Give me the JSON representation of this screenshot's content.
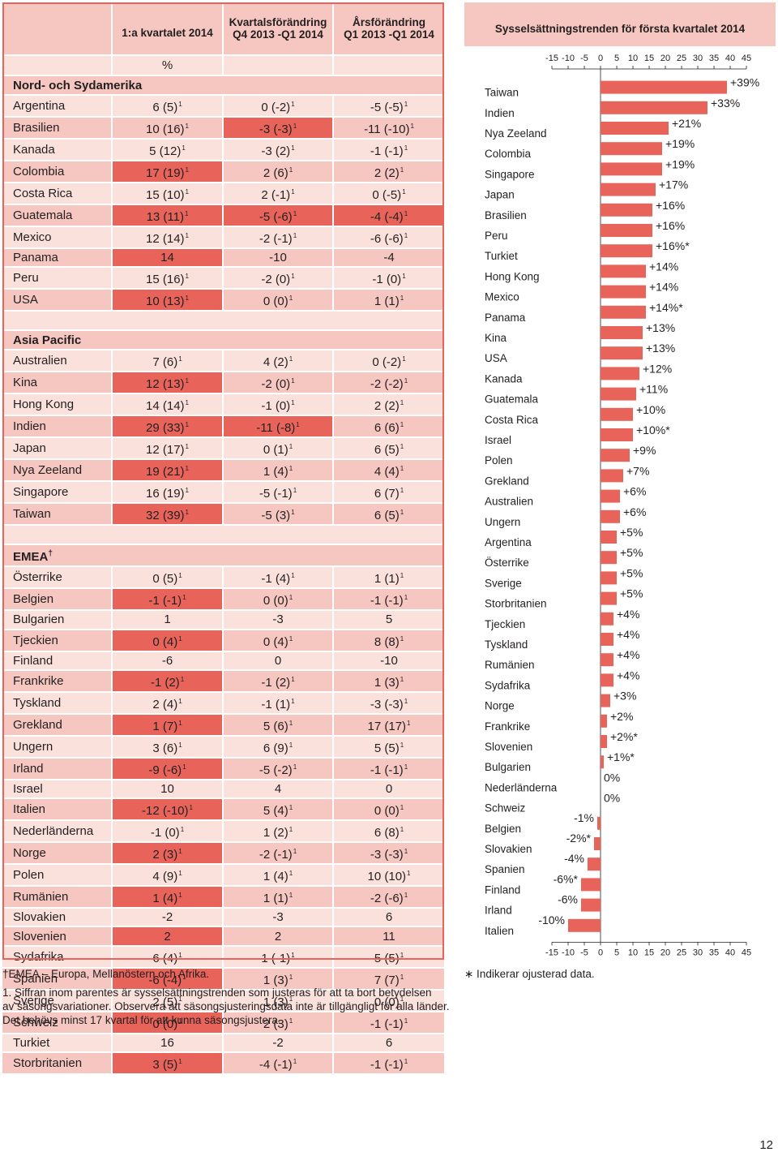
{
  "table": {
    "headers": [
      "1:a kvartalet 2014",
      "Kvartalsförändring",
      "Q4 2013 -Q1 2014",
      "Årsförändring",
      "Q1 2013 -Q1 2014"
    ],
    "unit": "%",
    "regions": [
      {
        "name": "Nord- och Sydamerika",
        "rows": [
          {
            "c": "Argentina",
            "a": "6 (5)",
            "as": "1",
            "b": "0 (-2)",
            "bs": "1",
            "d": "-5 (-5)",
            "ds": "1"
          },
          {
            "c": "Brasilien",
            "a": "10 (16)",
            "as": "1",
            "b": "-3 (-3)",
            "bs": "1",
            "d": "-11 (-10)",
            "ds": "1"
          },
          {
            "c": "Kanada",
            "a": "5 (12)",
            "as": "1",
            "b": "-3 (2)",
            "bs": "1",
            "d": "-1 (-1)",
            "ds": "1"
          },
          {
            "c": "Colombia",
            "a": "17 (19)",
            "as": "1",
            "b": "2 (6)",
            "bs": "1",
            "d": "2 (2)",
            "ds": "1"
          },
          {
            "c": "Costa Rica",
            "a": "15 (10)",
            "as": "1",
            "b": "2 (-1)",
            "bs": "1",
            "d": "0 (-5)",
            "ds": "1"
          },
          {
            "c": "Guatemala",
            "a": "13 (11)",
            "as": "1",
            "b": "-5 (-6)",
            "bs": "1",
            "d": "-4 (-4)",
            "ds": "1"
          },
          {
            "c": "Mexico",
            "a": "12 (14)",
            "as": "1",
            "b": "-2 (-1)",
            "bs": "1",
            "d": "-6 (-6)",
            "ds": "1"
          },
          {
            "c": "Panama",
            "a": "14",
            "as": "",
            "b": "-10",
            "bs": "",
            "d": "-4",
            "ds": ""
          },
          {
            "c": "Peru",
            "a": "15 (16)",
            "as": "1",
            "b": "-2 (0)",
            "bs": "1",
            "d": "-1 (0)",
            "ds": "1"
          },
          {
            "c": "USA",
            "a": "10 (13)",
            "as": "1",
            "b": "0 (0)",
            "bs": "1",
            "d": "1 (1)",
            "ds": "1"
          }
        ]
      },
      {
        "name": "Asia Pacific",
        "rows": [
          {
            "c": "Australien",
            "a": "7 (6)",
            "as": "1",
            "b": "4 (2)",
            "bs": "1",
            "d": "0 (-2)",
            "ds": "1"
          },
          {
            "c": "Kina",
            "a": "12 (13)",
            "as": "1",
            "b": "-2 (0)",
            "bs": "1",
            "d": "-2 (-2)",
            "ds": "1"
          },
          {
            "c": "Hong Kong",
            "a": "14 (14)",
            "as": "1",
            "b": "-1 (0)",
            "bs": "1",
            "d": "2 (2)",
            "ds": "1"
          },
          {
            "c": "Indien",
            "a": "29 (33)",
            "as": "1",
            "b": "-11 (-8)",
            "bs": "1",
            "d": "6 (6)",
            "ds": "1"
          },
          {
            "c": "Japan",
            "a": "12 (17)",
            "as": "1",
            "b": "0 (1)",
            "bs": "1",
            "d": "6 (5)",
            "ds": "1"
          },
          {
            "c": "Nya Zeeland",
            "a": "19 (21)",
            "as": "1",
            "b": "1 (4)",
            "bs": "1",
            "d": "4 (4)",
            "ds": "1"
          },
          {
            "c": "Singapore",
            "a": "16 (19)",
            "as": "1",
            "b": "-5 (-1)",
            "bs": "1",
            "d": "6 (7)",
            "ds": "1"
          },
          {
            "c": "Taiwan",
            "a": "32 (39)",
            "as": "1",
            "b": "-5 (3)",
            "bs": "1",
            "d": "6 (5)",
            "ds": "1"
          }
        ]
      },
      {
        "name": "EMEA",
        "name_mark": "†",
        "rows": [
          {
            "c": "Österrike",
            "a": "0 (5)",
            "as": "1",
            "b": "-1 (4)",
            "bs": "1",
            "d": "1 (1)",
            "ds": "1"
          },
          {
            "c": "Belgien",
            "a": "-1 (-1)",
            "as": "1",
            "b": "0 (0)",
            "bs": "1",
            "d": "-1 (-1)",
            "ds": "1"
          },
          {
            "c": "Bulgarien",
            "a": "1",
            "as": "",
            "b": "-3",
            "bs": "",
            "d": "5",
            "ds": ""
          },
          {
            "c": "Tjeckien",
            "a": "0 (4)",
            "as": "1",
            "b": "0 (4)",
            "bs": "1",
            "d": "8 (8)",
            "ds": "1"
          },
          {
            "c": "Finland",
            "a": "-6",
            "as": "",
            "b": "0",
            "bs": "",
            "d": "-10",
            "ds": ""
          },
          {
            "c": "Frankrike",
            "a": "-1 (2)",
            "as": "1",
            "b": "-1 (2)",
            "bs": "1",
            "d": "1 (3)",
            "ds": "1"
          },
          {
            "c": "Tyskland",
            "a": "2 (4)",
            "as": "1",
            "b": "-1 (1)",
            "bs": "1",
            "d": "-3 (-3)",
            "ds": "1"
          },
          {
            "c": "Grekland",
            "a": "1 (7)",
            "as": "1",
            "b": "5 (6)",
            "bs": "1",
            "d": "17 (17)",
            "ds": "1"
          },
          {
            "c": "Ungern",
            "a": "3 (6)",
            "as": "1",
            "b": "6 (9)",
            "bs": "1",
            "d": "5 (5)",
            "ds": "1"
          },
          {
            "c": "Irland",
            "a": "-9 (-6)",
            "as": "1",
            "b": "-5 (-2)",
            "bs": "1",
            "d": "-1 (-1)",
            "ds": "1"
          },
          {
            "c": "Israel",
            "a": "10",
            "as": "",
            "b": "4",
            "bs": "",
            "d": "0",
            "ds": ""
          },
          {
            "c": "Italien",
            "a": "-12 (-10)",
            "as": "1",
            "b": "5 (4)",
            "bs": "1",
            "d": "0 (0)",
            "ds": "1"
          },
          {
            "c": "Nederländerna",
            "a": "-1 (0)",
            "as": "1",
            "b": "1 (2)",
            "bs": "1",
            "d": "6 (8)",
            "ds": "1"
          },
          {
            "c": "Norge",
            "a": "2 (3)",
            "as": "1",
            "b": "-2 (-1)",
            "bs": "1",
            "d": "-3 (-3)",
            "ds": "1"
          },
          {
            "c": "Polen",
            "a": "4 (9)",
            "as": "1",
            "b": "1 (4)",
            "bs": "1",
            "d": "10 (10)",
            "ds": "1"
          },
          {
            "c": "Rumänien",
            "a": "1 (4)",
            "as": "1",
            "b": "1 (1)",
            "bs": "1",
            "d": "-2 (-6)",
            "ds": "1"
          },
          {
            "c": "Slovakien",
            "a": "-2",
            "as": "",
            "b": "-3",
            "bs": "",
            "d": "6",
            "ds": ""
          },
          {
            "c": "Slovenien",
            "a": "2",
            "as": "",
            "b": "2",
            "bs": "",
            "d": "11",
            "ds": ""
          },
          {
            "c": "Sydafrika",
            "a": "6 (4)",
            "as": "1",
            "b": "1 (-1)",
            "bs": "1",
            "d": "5 (5)",
            "ds": "1"
          },
          {
            "c": "Spanien",
            "a": "-6 (-4)",
            "as": "1",
            "b": "1 (3)",
            "bs": "1",
            "d": "7 (7)",
            "ds": "1"
          },
          {
            "c": "Sverige",
            "a": "2 (5)",
            "as": "1",
            "b": "1 (3)",
            "bs": "1",
            "d": "0 (0)",
            "ds": "1"
          },
          {
            "c": "Schweiz",
            "a": "0 (0)",
            "as": "1",
            "b": "2 (3)",
            "bs": "1",
            "d": "-1 (-1)",
            "ds": "1"
          },
          {
            "c": "Turkiet",
            "a": "16",
            "as": "",
            "b": "-2",
            "bs": "",
            "d": "6",
            "ds": ""
          },
          {
            "c": "Storbritanien",
            "a": "3 (5)",
            "as": "1",
            "b": "-4 (-1)",
            "bs": "1",
            "d": "-1 (-1)",
            "ds": "1"
          }
        ]
      }
    ]
  },
  "chart_data": {
    "type": "bar",
    "orientation": "horizontal",
    "title": "Sysselsättningstrenden för första kvartalet 2014",
    "xlim": [
      -15,
      45
    ],
    "ticks": [
      -15,
      -10,
      -5,
      0,
      5,
      10,
      15,
      20,
      25,
      30,
      35,
      40,
      45
    ],
    "categories": [
      "Taiwan",
      "Indien",
      "Nya Zeeland",
      "Colombia",
      "Singapore",
      "Japan",
      "Brasilien",
      "Peru",
      "Turkiet",
      "Hong Kong",
      "Mexico",
      "Panama",
      "Kina",
      "USA",
      "Kanada",
      "Guatemala",
      "Costa Rica",
      "Israel",
      "Polen",
      "Grekland",
      "Australien",
      "Ungern",
      "Argentina",
      "Österrike",
      "Sverige",
      "Storbritanien",
      "Tjeckien",
      "Tyskland",
      "Rumänien",
      "Sydafrika",
      "Norge",
      "Frankrike",
      "Slovenien",
      "Bulgarien",
      "Nederländerna",
      "Schweiz",
      "Belgien",
      "Slovakien",
      "Spanien",
      "Finland",
      "Irland",
      "Italien"
    ],
    "values": [
      39,
      33,
      21,
      19,
      19,
      17,
      16,
      16,
      16,
      14,
      14,
      14,
      13,
      13,
      12,
      11,
      10,
      10,
      9,
      7,
      6,
      6,
      5,
      5,
      5,
      5,
      4,
      4,
      4,
      4,
      3,
      2,
      2,
      1,
      0,
      0,
      -1,
      -2,
      -4,
      -6,
      -6,
      -10
    ],
    "labels": [
      "+39%",
      "+33%",
      "+21%",
      "+19%",
      "+19%",
      "+17%",
      "+16%",
      "+16%",
      "+16%*",
      "+14%",
      "+14%",
      "+14%*",
      "+13%",
      "+13%",
      "+12%",
      "+11%",
      "+10%",
      "+10%*",
      "+9%",
      "+7%",
      "+6%",
      "+6%",
      "+5%",
      "+5%",
      "+5%",
      "+5%",
      "+4%",
      "+4%",
      "+4%",
      "+4%",
      "+3%",
      "+2%",
      "+2%*",
      "+1%*",
      "0%",
      "0%",
      "-1%",
      "-2%*",
      "-4%",
      "-6%*",
      "-6%",
      "-10%"
    ]
  },
  "colors": {
    "accent": "#e8645a",
    "light": "#f6c6c0",
    "pale": "#fbe1dc"
  },
  "footnotes": {
    "emea": "†EMEA – Europa, Mellanöstern och Afrika.",
    "note1_line1": "1. Siffran inom parentes är sysselsättningstrenden som justeras för att ta bort betydelsen",
    "note1_line2": "av säsongsvariationer. Observera att säsongsjusteringsdata inte är tillgängligt för alla länder.",
    "note1_line3": "Det behövs minst 17 kvartal för att kunna säsongsjustera.",
    "star": "∗ Indikerar ojusterad data."
  },
  "page_number": "12"
}
